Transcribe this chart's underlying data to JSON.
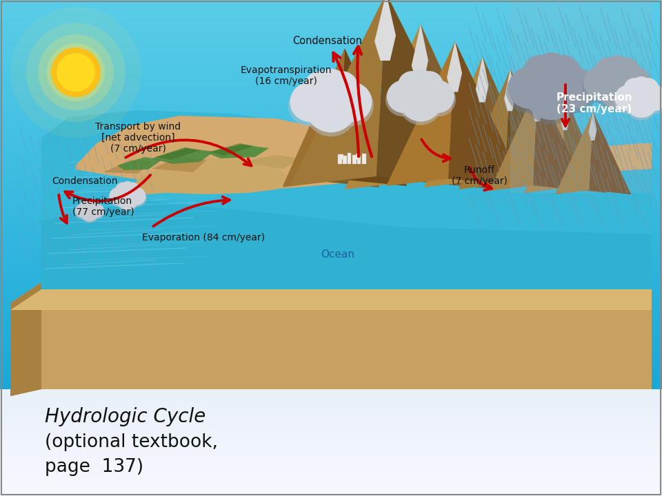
{
  "fig_w": 9.6,
  "fig_h": 7.2,
  "title_line1": "Hydrologic Cycle",
  "title_line2": "(optional textbook,",
  "title_line3": "page  137)",
  "sky_top": "#1aa8d8",
  "sky_bot": "#5acde8",
  "white_bot": "#f0f2f5",
  "ocean_top": "#38b8d8",
  "ocean_mid": "#28a0c0",
  "ocean_bot": "#1888a8",
  "land_base": "#c8a870",
  "land_light": "#d8b878",
  "land_dark": "#a88848",
  "land_shadow": "#806030",
  "green1": "#3a7a2c",
  "green2": "#4a8a3c",
  "mountain_base": "#a88040",
  "mountain_shadow": "#785820",
  "mountain_light": "#c8a060",
  "snow": "#e8e8e8",
  "cloud_color": "#d8dce0",
  "cloud_shadow": "#b0b8c0",
  "rain_color": "#7ab8d8",
  "rain_alpha": 0.45,
  "sun_core": "#f8c018",
  "sun_mid": "#f8e040",
  "sun_glow1": "#f8f060",
  "arrow_color": "#cc0000",
  "arrow_lw": 2.8,
  "text_dark": "#1a1a1a",
  "text_ocean": "#1860a0",
  "text_precip_right": "#ffffff",
  "border_color": "#888888"
}
